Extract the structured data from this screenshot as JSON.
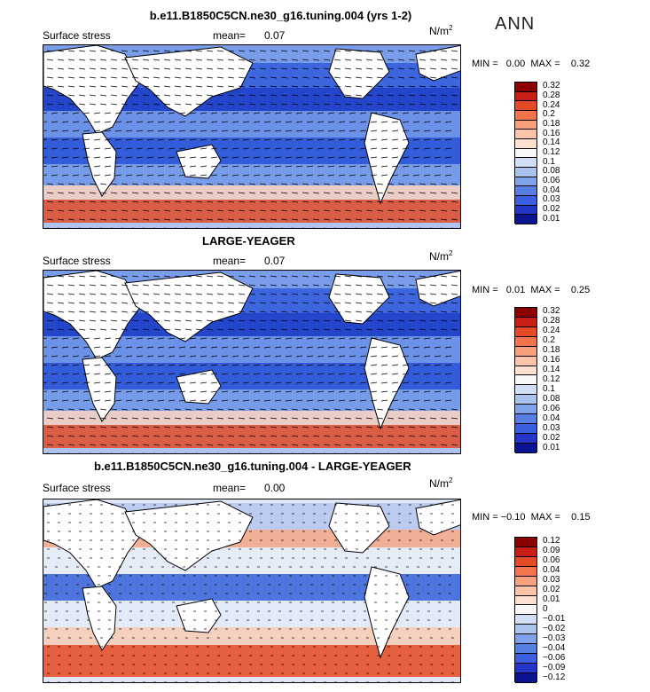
{
  "page": {
    "title": "b.e11.B1850C5CN.ne30_g16.tuning.004 (yrs 1-2)",
    "season": "ANN"
  },
  "panels": [
    {
      "id": "top",
      "heading": "",
      "field": "Surface stress",
      "mean_label": "mean=",
      "mean": "0.07",
      "unit": "N/m",
      "unit_exp": "2",
      "minmax": "MIN =   0.00  MAX =    0.32",
      "colorbar_labels": [
        "0.32",
        "0.28",
        "0.24",
        "0.2",
        "0.18",
        "0.16",
        "0.14",
        "0.12",
        "0.1",
        "0.08",
        "0.06",
        "0.04",
        "0.03",
        "0.02",
        "0.01"
      ],
      "colorbar_colors": [
        "#8b0000",
        "#c81e16",
        "#e44a26",
        "#f3744a",
        "#f8a07c",
        "#fbc4a8",
        "#fde0cf",
        "#f7f7f7",
        "#d1def3",
        "#aac4ee",
        "#7ea3ea",
        "#567fe4",
        "#3a5ee0",
        "#2436c8",
        "#0a1490"
      ]
    },
    {
      "id": "middle",
      "heading": "LARGE-YEAGER",
      "field": "Surface stress",
      "mean_label": "mean=",
      "mean": "0.07",
      "unit": "N/m",
      "unit_exp": "2",
      "minmax": "MIN =   0.01  MAX =    0.25",
      "colorbar_labels": [
        "0.32",
        "0.28",
        "0.24",
        "0.2",
        "0.18",
        "0.16",
        "0.14",
        "0.12",
        "0.1",
        "0.08",
        "0.06",
        "0.04",
        "0.03",
        "0.02",
        "0.01"
      ],
      "colorbar_colors": [
        "#8b0000",
        "#c81e16",
        "#e44a26",
        "#f3744a",
        "#f8a07c",
        "#fbc4a8",
        "#fde0cf",
        "#f7f7f7",
        "#d1def3",
        "#aac4ee",
        "#7ea3ea",
        "#567fe4",
        "#3a5ee0",
        "#2436c8",
        "#0a1490"
      ]
    },
    {
      "id": "bottom",
      "heading": "b.e11.B1850C5CN.ne30_g16.tuning.004 - LARGE-YEAGER",
      "field": "Surface stress",
      "mean_label": "mean=",
      "mean": "0.00",
      "unit": "N/m",
      "unit_exp": "2",
      "minmax": "MIN = −0.10  MAX =    0.15",
      "colorbar_labels": [
        "0.12",
        "0.09",
        "0.06",
        "0.04",
        "0.03",
        "0.02",
        "0.01",
        "0",
        "−0.01",
        "−0.02",
        "−0.03",
        "−0.04",
        "−0.06",
        "−0.09",
        "−0.12"
      ],
      "colorbar_colors": [
        "#8b0000",
        "#c81e16",
        "#e44a26",
        "#f3744a",
        "#f8a07c",
        "#fbc4a8",
        "#fde0cf",
        "#f7f7f7",
        "#d1def3",
        "#aac4ee",
        "#7ea3ea",
        "#567fe4",
        "#3a5ee0",
        "#2436c8",
        "#0a1490"
      ]
    }
  ]
}
